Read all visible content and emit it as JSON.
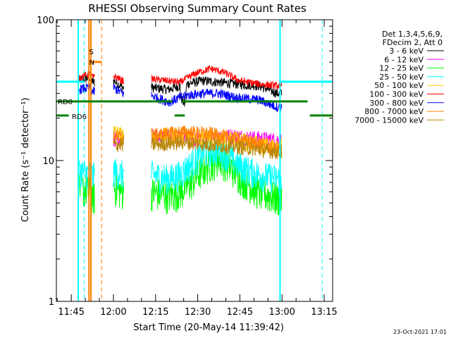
{
  "chart_data": {
    "type": "line",
    "title": "RHESSI Observing Summary Count Rates",
    "xlabel": "Start Time (20-May-14 11:39:42)",
    "ylabel": "Count Rate (s⁻¹ detector⁻¹)",
    "yscale": "log",
    "ylim": [
      1,
      100
    ],
    "xlim_minutes": [
      0,
      98.3
    ],
    "x_ticks": [
      "11:45",
      "12:00",
      "12:15",
      "12:30",
      "12:45",
      "13:00",
      "13:15"
    ],
    "x_tick_minutes": [
      5.3,
      20.3,
      35.3,
      50.3,
      65.3,
      80.3,
      95.3
    ],
    "y_ticks": [
      "1",
      "10",
      "100"
    ],
    "legend_header": [
      "Det 1,3,4,5,6,9,",
      "FDecim 2, Att 0"
    ],
    "series": [
      {
        "name": "3 - 6 keV",
        "color": "#000000",
        "profile": [
          [
            8.1,
            37
          ],
          [
            11.7,
            39
          ],
          [
            13.1,
            36
          ],
          [
            13.6,
            null
          ],
          [
            19.7,
            null
          ],
          [
            20.3,
            37
          ],
          [
            23.5,
            33
          ],
          [
            24,
            null
          ],
          [
            33.3,
            null
          ],
          [
            33.8,
            33
          ],
          [
            40,
            32
          ],
          [
            44,
            34
          ],
          [
            44.3,
            28
          ],
          [
            45.7,
            25
          ],
          [
            46.4,
            35
          ],
          [
            52,
            37
          ],
          [
            58,
            36
          ],
          [
            64,
            35
          ],
          [
            72,
            34
          ],
          [
            78.6,
            30
          ],
          [
            80.2,
            null
          ]
        ]
      },
      {
        "name": "6 - 12 keV",
        "color": "#ff00ff",
        "profile": [
          [
            20.3,
            14
          ],
          [
            23.5,
            15
          ],
          [
            24,
            null
          ],
          [
            33.3,
            null
          ],
          [
            33.8,
            15
          ],
          [
            45,
            14.5
          ],
          [
            53,
            14
          ],
          [
            62,
            15
          ],
          [
            70,
            14.5
          ],
          [
            78.6,
            14
          ],
          [
            80.2,
            null
          ]
        ]
      },
      {
        "name": "12 - 25 keV",
        "color": "#00ff00",
        "profile": [
          [
            8.1,
            6.5
          ],
          [
            12,
            6.0
          ],
          [
            13.1,
            5.5
          ],
          [
            13.6,
            null
          ],
          [
            19.7,
            null
          ],
          [
            20.3,
            6.5
          ],
          [
            23.5,
            6.0
          ],
          [
            24,
            null
          ],
          [
            33.3,
            null
          ],
          [
            33.8,
            6.0
          ],
          [
            40,
            5.7
          ],
          [
            44,
            6.0
          ],
          [
            48,
            7.0
          ],
          [
            53,
            9.0
          ],
          [
            58,
            10.5
          ],
          [
            62,
            9.0
          ],
          [
            66,
            7.5
          ],
          [
            72,
            6.0
          ],
          [
            78.6,
            5.4
          ],
          [
            80.2,
            null
          ]
        ]
      },
      {
        "name": "25 - 50 keV",
        "color": "#00ffff",
        "profile": [
          [
            8.1,
            8.5
          ],
          [
            12,
            8.0
          ],
          [
            13.1,
            7.8
          ],
          [
            13.6,
            null
          ],
          [
            19.7,
            null
          ],
          [
            20.3,
            8.5
          ],
          [
            23.5,
            8.0
          ],
          [
            24,
            null
          ],
          [
            33.3,
            null
          ],
          [
            33.8,
            8.0
          ],
          [
            40,
            7.5
          ],
          [
            44,
            8.0
          ],
          [
            48,
            9.5
          ],
          [
            53,
            11.5
          ],
          [
            58,
            12.0
          ],
          [
            62,
            10.5
          ],
          [
            66,
            9.0
          ],
          [
            72,
            8.0
          ],
          [
            78.6,
            7.5
          ],
          [
            80.2,
            null
          ]
        ]
      },
      {
        "name": "50 - 100 keV",
        "color": "#ffcc00",
        "profile": [
          [
            20.3,
            16
          ],
          [
            23.5,
            15
          ],
          [
            24,
            null
          ],
          [
            33.3,
            null
          ],
          [
            33.8,
            15
          ],
          [
            45,
            15
          ],
          [
            55,
            14.5
          ],
          [
            65,
            14
          ],
          [
            72,
            13
          ],
          [
            78.6,
            12.5
          ],
          [
            80.2,
            null
          ]
        ]
      },
      {
        "name": "100 - 300 keV",
        "color": "#ff0000",
        "profile": [
          [
            8.1,
            39
          ],
          [
            11.7,
            41
          ],
          [
            13.1,
            39
          ],
          [
            13.6,
            null
          ],
          [
            19.7,
            null
          ],
          [
            20.3,
            40
          ],
          [
            23.5,
            37
          ],
          [
            24,
            null
          ],
          [
            33.3,
            null
          ],
          [
            33.8,
            38
          ],
          [
            44,
            36
          ],
          [
            50,
            42
          ],
          [
            55,
            45
          ],
          [
            60,
            42
          ],
          [
            65,
            37
          ],
          [
            72,
            35
          ],
          [
            78.6,
            34
          ],
          [
            80.2,
            null
          ]
        ]
      },
      {
        "name": "300 - 800 keV",
        "color": "#0000ff",
        "profile": [
          [
            8.1,
            32
          ],
          [
            11.7,
            33
          ],
          [
            13.1,
            31
          ],
          [
            13.6,
            null
          ],
          [
            19.7,
            null
          ],
          [
            20.3,
            33
          ],
          [
            23.5,
            30
          ],
          [
            24,
            null
          ],
          [
            33.3,
            null
          ],
          [
            33.8,
            29
          ],
          [
            40,
            26
          ],
          [
            44,
            28
          ],
          [
            46.4,
            29
          ],
          [
            52,
            30
          ],
          [
            58,
            30
          ],
          [
            64,
            28
          ],
          [
            72,
            27
          ],
          [
            78.6,
            24
          ],
          [
            80.2,
            null
          ]
        ]
      },
      {
        "name": "800 - 7000 keV",
        "color": "#ff8000",
        "profile": [
          [
            20.3,
            15
          ],
          [
            23.5,
            14.5
          ],
          [
            24,
            null
          ],
          [
            33.3,
            null
          ],
          [
            33.8,
            15
          ],
          [
            45,
            16
          ],
          [
            55,
            15.5
          ],
          [
            65,
            14
          ],
          [
            72,
            13
          ],
          [
            78.6,
            12
          ],
          [
            80.2,
            null
          ]
        ]
      },
      {
        "name": "7000 - 15000 keV",
        "color": "#b8860b",
        "profile": [
          [
            20.3,
            13
          ],
          [
            23.5,
            13
          ],
          [
            24,
            null
          ],
          [
            33.3,
            null
          ],
          [
            33.8,
            13
          ],
          [
            45,
            13.5
          ],
          [
            55,
            13
          ],
          [
            65,
            12.5
          ],
          [
            72,
            12
          ],
          [
            78.6,
            11.5
          ],
          [
            80.2,
            null
          ]
        ]
      }
    ],
    "markers": [
      {
        "label": "N",
        "color": "#00ffff",
        "lines": [
          [
            7.8,
            "solid"
          ],
          [
            9.9,
            "dashed"
          ],
          [
            79.6,
            "solid"
          ],
          [
            94.6,
            "dashed"
          ]
        ],
        "bars": [
          [
            0,
            9.9,
            0.78
          ],
          [
            79.6,
            98.3,
            0.78
          ]
        ]
      },
      {
        "label": "S",
        "color": "#ff8000",
        "lines": [
          [
            11.6,
            "solid"
          ],
          [
            12.3,
            "solid"
          ],
          [
            16.1,
            "dashed"
          ]
        ],
        "bars": [
          [
            12.3,
            16.1,
            0.85
          ]
        ]
      },
      {
        "label": "RD0",
        "color": "#008000",
        "lines": [],
        "bars": [
          [
            0,
            41.3,
            0.71
          ],
          [
            44.7,
            89.4,
            0.71
          ]
        ]
      },
      {
        "label": "RD6",
        "color": "#008000",
        "lines": [],
        "bars": [
          [
            0,
            4.4,
            0.66
          ],
          [
            42.1,
            45.7,
            0.66
          ],
          [
            90.2,
            98.3,
            0.66
          ]
        ]
      }
    ]
  },
  "timestamp": "23-Oct-2021 17:01"
}
